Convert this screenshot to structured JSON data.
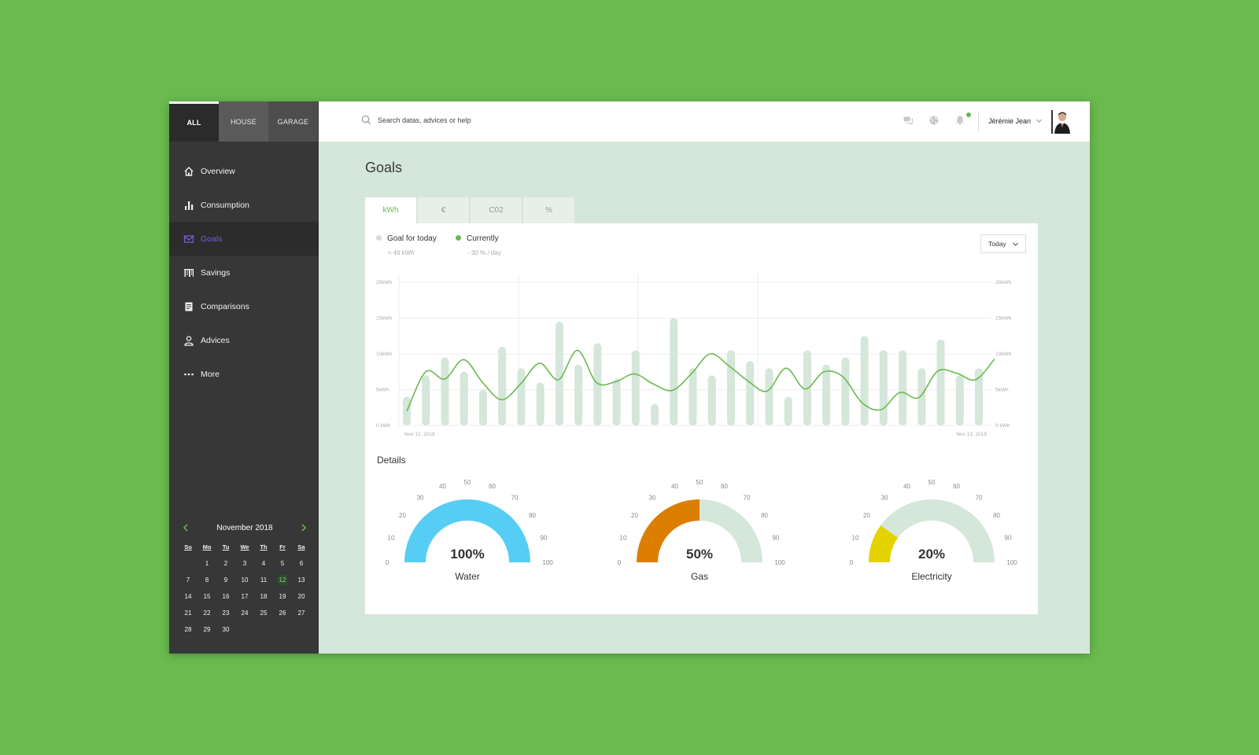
{
  "sidebar": {
    "scope_tabs": [
      {
        "label": "ALL"
      },
      {
        "label": "HOUSE"
      },
      {
        "label": "GARAGE"
      }
    ],
    "nav": [
      {
        "label": "Overview",
        "icon": "home-icon"
      },
      {
        "label": "Consumption",
        "icon": "bar-chart-icon"
      },
      {
        "label": "Goals",
        "icon": "envelope-icon"
      },
      {
        "label": "Savings",
        "icon": "barcode-icon"
      },
      {
        "label": "Comparisons",
        "icon": "document-icon"
      },
      {
        "label": "Advices",
        "icon": "person-icon"
      },
      {
        "label": "More",
        "icon": "more-dots-icon"
      }
    ],
    "active_nav": "Goals",
    "calendar": {
      "month": "November 2018",
      "weekdays": [
        "Su",
        "Mo",
        "Tu",
        "We",
        "Th",
        "Fr",
        "Sa"
      ],
      "weeks": [
        [
          "",
          "1",
          "2",
          "3",
          "4",
          "5",
          "6"
        ],
        [
          "7",
          "8",
          "9",
          "10",
          "11",
          "12",
          "13"
        ],
        [
          "14",
          "15",
          "16",
          "17",
          "18",
          "19",
          "20"
        ],
        [
          "21",
          "22",
          "23",
          "24",
          "25",
          "26",
          "27"
        ],
        [
          "28",
          "29",
          "30",
          "",
          "",
          "",
          ""
        ]
      ],
      "selected_day": "12"
    }
  },
  "header": {
    "search_placeholder": "Search datas, advices or help",
    "icons": [
      "chat-icon",
      "globe-icon",
      "bell-icon"
    ],
    "user_name": "Jérémie Jean"
  },
  "main": {
    "title": "Goals",
    "unit_tabs": [
      "kWh",
      "€",
      "C02",
      "%"
    ],
    "active_unit": "kWh",
    "legend": {
      "goal_label": "Goal for today",
      "goal_sub": "≈ 46 kWh",
      "current_label": "Currently",
      "current_sub": "- 30 % / day"
    },
    "range_select": "Today",
    "details_title": "Details",
    "gauges": [
      {
        "label": "Water",
        "value": 100,
        "value_text": "100%",
        "color": "#56cdf5"
      },
      {
        "label": "Gas",
        "value": 50,
        "value_text": "50%",
        "color": "#dc7e00"
      },
      {
        "label": "Electricity",
        "value": 20,
        "value_text": "20%",
        "color": "#e5d300"
      }
    ],
    "gauge_ticks": [
      "0",
      "10",
      "20",
      "30",
      "40",
      "50",
      "60",
      "70",
      "80",
      "90",
      "100"
    ]
  },
  "colors": {
    "accent": "#6aba4f",
    "bar": "#d5e6da",
    "line": "#6aba4f",
    "goal_dot": "#d7ded9",
    "gauge_track": "#d5e6da"
  },
  "chart_data": {
    "type": "bar",
    "y_ticks": [
      "0 kWh",
      "5kWh",
      "10kWh",
      "15kWh",
      "20kWh"
    ],
    "x_start_label": "Nov 12, 2018",
    "x_end_label": "Nov 13, 2018",
    "ylim": [
      0,
      20
    ],
    "series": [
      {
        "values": [
          4,
          7,
          9.5,
          7.5,
          5,
          11,
          8,
          6,
          14.5,
          8.5,
          11.5,
          6.5,
          10.5,
          3,
          15,
          8,
          7,
          10.5,
          9,
          8,
          4,
          10.5,
          8.5,
          9.5,
          12.5,
          10.5,
          10.5,
          8,
          12,
          7,
          8
        ]
      },
      {
        "values": [
          2,
          7.5,
          6.5,
          9.2,
          6,
          3.6,
          5.8,
          8.7,
          6.4,
          10.5,
          6,
          6.1,
          7.2,
          5.8,
          4.9,
          7.2,
          10,
          8.3,
          6.2,
          4.8,
          8,
          5.1,
          7.5,
          6.8,
          3.2,
          2.2,
          4.6,
          3.9,
          7.6,
          7.3,
          6.4,
          9.3
        ]
      }
    ]
  }
}
